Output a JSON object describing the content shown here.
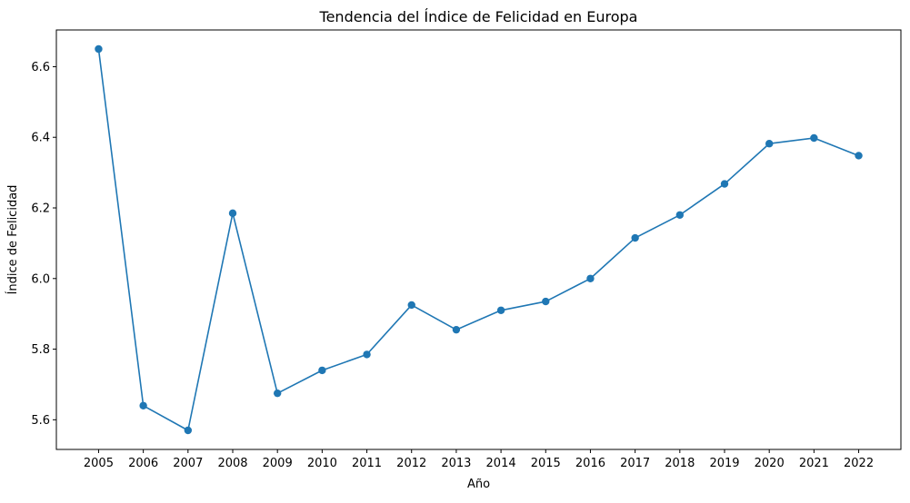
{
  "chart_data": {
    "type": "line",
    "title": "Tendencia del Índice de Felicidad en Europa",
    "xlabel": "Año",
    "ylabel": "Índice de Felicidad",
    "x": [
      "2005",
      "2006",
      "2007",
      "2008",
      "2009",
      "2010",
      "2011",
      "2012",
      "2013",
      "2014",
      "2015",
      "2016",
      "2017",
      "2018",
      "2019",
      "2020",
      "2021",
      "2022"
    ],
    "series": [
      {
        "values": [
          6.65,
          5.64,
          5.57,
          6.185,
          5.675,
          5.74,
          5.785,
          5.925,
          5.855,
          5.91,
          5.935,
          6.0,
          6.115,
          6.18,
          6.268,
          6.382,
          6.398,
          6.348
        ],
        "color": "#1f77b4",
        "marker": "circle"
      }
    ],
    "yticks": [
      5.6,
      5.8,
      6.0,
      6.2,
      6.4,
      6.6
    ],
    "ylim": [
      5.516,
      6.704
    ],
    "grid": false,
    "legend": "none"
  }
}
